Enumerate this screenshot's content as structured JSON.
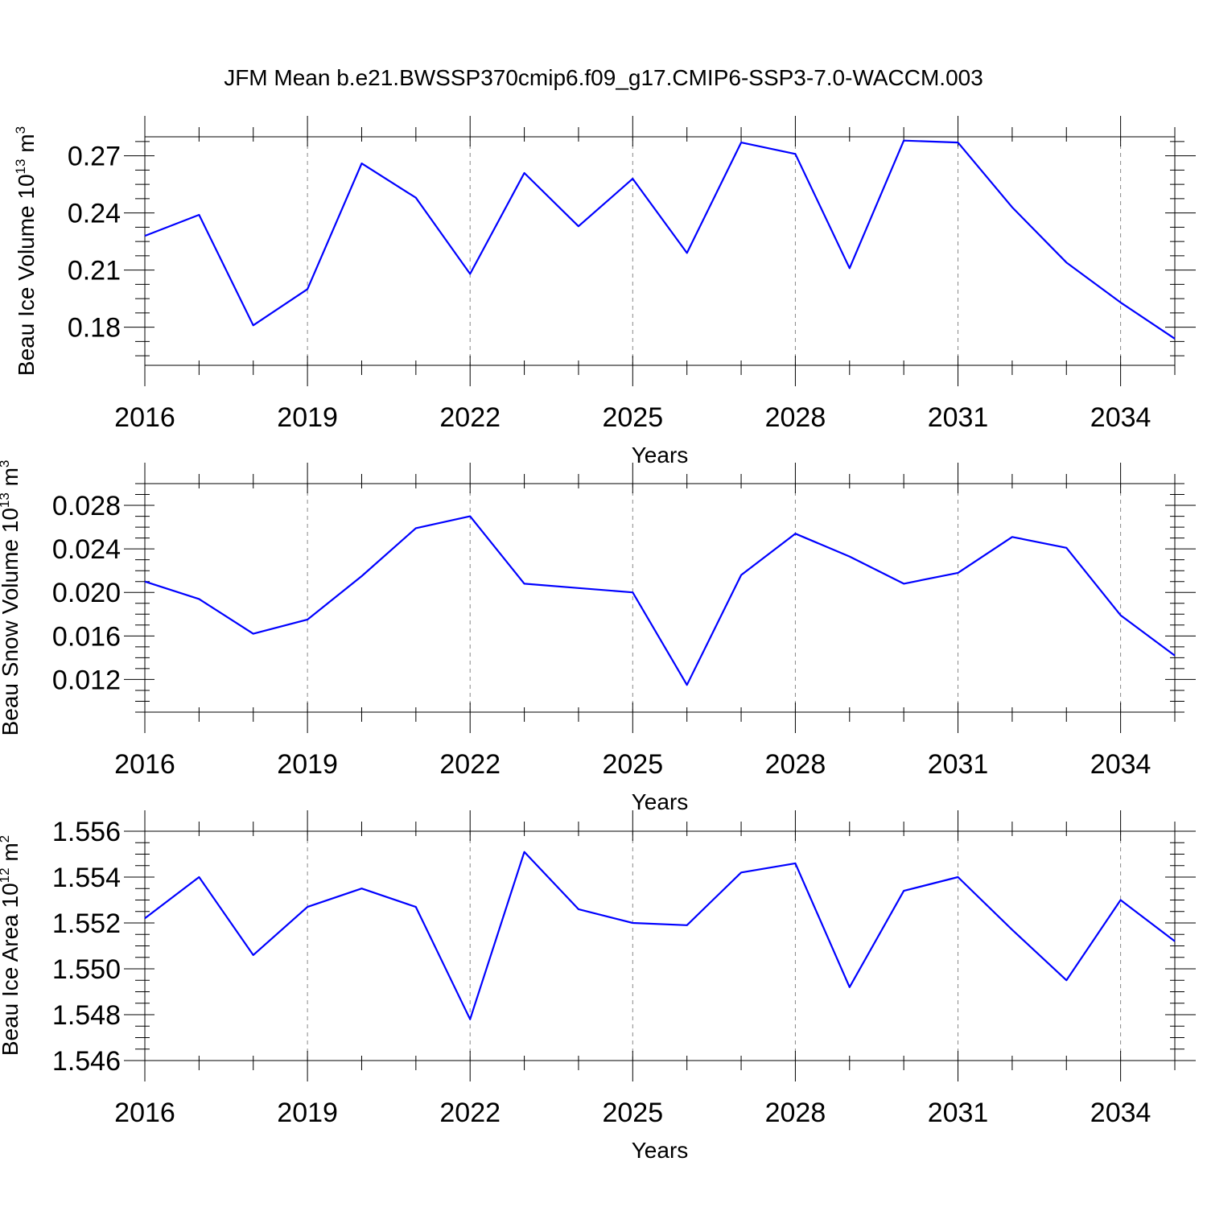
{
  "title": "JFM Mean b.e21.BWSSP370cmip6.f09_g17.CMIP6-SSP3-7.0-WACCM.003",
  "line_color": "#0000ff",
  "chart_data": [
    {
      "type": "line",
      "x": [
        2016,
        2017,
        2018,
        2019,
        2020,
        2021,
        2022,
        2023,
        2024,
        2025,
        2026,
        2027,
        2028,
        2029,
        2030,
        2031,
        2032,
        2033,
        2034,
        2035
      ],
      "values": [
        0.228,
        0.239,
        0.181,
        0.2,
        0.266,
        0.248,
        0.208,
        0.261,
        0.233,
        0.258,
        0.219,
        0.277,
        0.271,
        0.211,
        0.278,
        0.277,
        0.243,
        0.214,
        0.193,
        0.174
      ],
      "xlabel": "Years",
      "ylabel": {
        "base": "Beau Ice Volume 10",
        "exponent": "13",
        "unit_base": " m",
        "unit_exponent": "3"
      },
      "xticks": [
        "2016",
        "2019",
        "2022",
        "2025",
        "2028",
        "2031",
        "2034"
      ],
      "yticks": [
        "0.18",
        "0.21",
        "0.24",
        "0.27"
      ],
      "xlim": [
        2016,
        2035
      ],
      "ylim": [
        0.16,
        0.28
      ],
      "grid": "vertical dashed at major x ticks"
    },
    {
      "type": "line",
      "x": [
        2016,
        2017,
        2018,
        2019,
        2020,
        2021,
        2022,
        2023,
        2024,
        2025,
        2026,
        2027,
        2028,
        2029,
        2030,
        2031,
        2032,
        2033,
        2034,
        2035
      ],
      "values": [
        0.021,
        0.0194,
        0.0162,
        0.0175,
        0.0215,
        0.0259,
        0.027,
        0.0208,
        0.0204,
        0.02,
        0.0115,
        0.0216,
        0.0254,
        0.0233,
        0.0208,
        0.0218,
        0.0251,
        0.0241,
        0.0179,
        0.0142
      ],
      "xlabel": "Years",
      "ylabel": {
        "base": "Beau Snow Volume 10",
        "exponent": "13",
        "unit_base": " m",
        "unit_exponent": "3"
      },
      "xticks": [
        "2016",
        "2019",
        "2022",
        "2025",
        "2028",
        "2031",
        "2034"
      ],
      "yticks": [
        "0.012",
        "0.016",
        "0.020",
        "0.024",
        "0.028"
      ],
      "xlim": [
        2016,
        2035
      ],
      "ylim": [
        0.009,
        0.03
      ],
      "grid": "vertical dashed at major x ticks"
    },
    {
      "type": "line",
      "x": [
        2016,
        2017,
        2018,
        2019,
        2020,
        2021,
        2022,
        2023,
        2024,
        2025,
        2026,
        2027,
        2028,
        2029,
        2030,
        2031,
        2032,
        2033,
        2034,
        2035
      ],
      "values": [
        1.5522,
        1.554,
        1.5506,
        1.5527,
        1.5535,
        1.5527,
        1.5478,
        1.5551,
        1.5526,
        1.552,
        1.5519,
        1.5542,
        1.5546,
        1.5492,
        1.5534,
        1.554,
        1.5517,
        1.5495,
        1.553,
        1.5512
      ],
      "xlabel": "Years",
      "ylabel": {
        "base": "Beau Ice Area 10",
        "exponent": "12",
        "unit_base": " m",
        "unit_exponent": "2"
      },
      "xticks": [
        "2016",
        "2019",
        "2022",
        "2025",
        "2028",
        "2031",
        "2034"
      ],
      "yticks": [
        "1.546",
        "1.548",
        "1.550",
        "1.552",
        "1.554",
        "1.556"
      ],
      "xlim": [
        2016,
        2035
      ],
      "ylim": [
        1.546,
        1.556
      ],
      "grid": "vertical dashed at major x ticks"
    }
  ]
}
